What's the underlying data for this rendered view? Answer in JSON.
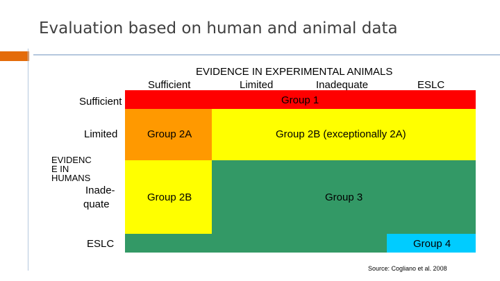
{
  "slide": {
    "title": "Evaluation based on human and animal data",
    "source": "Source: Cogliano et al. 2008"
  },
  "matrix": {
    "animals_header": "EVIDENCE IN EXPERIMENTAL ANIMALS",
    "humans_header_lines": [
      "EVIDENC",
      "E IN",
      "HUMANS"
    ],
    "columns": [
      "Sufficient",
      "Limited",
      "Inadequate",
      "ESLC"
    ],
    "rows": [
      "Sufficient",
      "Limited",
      "Inade-",
      "quate",
      "ESLC"
    ],
    "groups": {
      "group1": "Group 1",
      "group2a": "Group 2A",
      "group2b_except": "Group 2B (exceptionally 2A)",
      "group2b": "Group 2B",
      "group3": "Group 3",
      "group4": "Group 4"
    }
  },
  "colors": {
    "accent_orange": "#e46c0a",
    "accent_line": "#b4c7dd",
    "group1": "#ff0000",
    "group2a": "#ff9900",
    "yellow": "#ffff00",
    "green": "#339966",
    "group4": "#00ccff"
  }
}
